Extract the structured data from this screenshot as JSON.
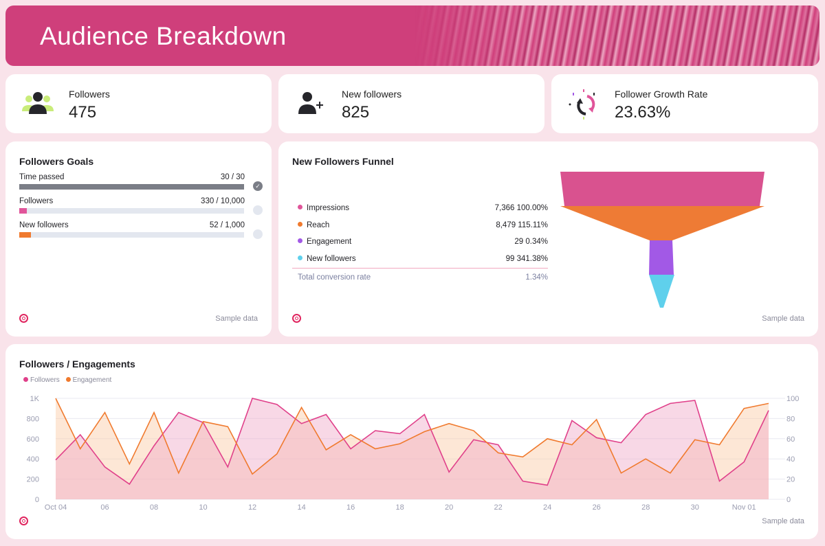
{
  "header": {
    "title": "Audience Breakdown"
  },
  "kpis": [
    {
      "label": "Followers",
      "value": "475",
      "icon": "users-group-icon"
    },
    {
      "label": "New followers",
      "value": "825",
      "icon": "user-plus-icon"
    },
    {
      "label": "Follower Growth Rate",
      "value": "23.63%",
      "icon": "growth-cycle-icon"
    }
  ],
  "goals": {
    "title": "Followers Goals",
    "items": [
      {
        "label": "Time passed",
        "value": "30 / 30",
        "progress": 1.0,
        "color": "#7b7e87",
        "complete": true
      },
      {
        "label": "Followers",
        "value": "330 / 10,000",
        "progress": 0.033,
        "color": "#e0559a",
        "complete": false
      },
      {
        "label": "New followers",
        "value": "52 / 1,000",
        "progress": 0.052,
        "color": "#f07a2e",
        "complete": false
      }
    ],
    "footer": "Sample data"
  },
  "funnel": {
    "title": "New Followers Funnel",
    "rows": [
      {
        "label": "Impressions",
        "value": "7,366 100.00%",
        "color": "#e0559a"
      },
      {
        "label": "Reach",
        "value": "8,479 115.11%",
        "color": "#f07a2e"
      },
      {
        "label": "Engagement",
        "value": "29 0.34%",
        "color": "#a259e6"
      },
      {
        "label": "New followers",
        "value": "99 341.38%",
        "color": "#5fd0ec"
      }
    ],
    "total_label": "Total conversion rate",
    "total_value": "1.34%",
    "footer": "Sample data"
  },
  "chart": {
    "title": "Followers / Engagements",
    "footer": "Sample data"
  },
  "chart_data": {
    "type": "area",
    "x": [
      "Oct 04",
      "Oct 05",
      "Oct 06",
      "Oct 07",
      "Oct 08",
      "Oct 09",
      "Oct 10",
      "Oct 11",
      "Oct 12",
      "Oct 13",
      "Oct 14",
      "Oct 15",
      "Oct 16",
      "Oct 17",
      "Oct 18",
      "Oct 19",
      "Oct 20",
      "Oct 21",
      "Oct 22",
      "Oct 23",
      "Oct 24",
      "Oct 25",
      "Oct 26",
      "Oct 27",
      "Oct 28",
      "Oct 29",
      "Oct 30",
      "Oct 31",
      "Nov 01",
      "Nov 02"
    ],
    "x_tick_labels": [
      "Oct 04",
      "06",
      "08",
      "10",
      "12",
      "14",
      "16",
      "18",
      "20",
      "22",
      "24",
      "26",
      "28",
      "30",
      "Nov 01"
    ],
    "y_left_ticks": [
      "0",
      "200",
      "400",
      "600",
      "800",
      "1K"
    ],
    "y_right_ticks": [
      "0",
      "20",
      "40",
      "60",
      "80",
      "100"
    ],
    "ylim_left": [
      0,
      1000
    ],
    "ylim_right": [
      0,
      100
    ],
    "grid": true,
    "legend": "top-left",
    "series": [
      {
        "name": "Followers",
        "axis": "left",
        "color": "#e0408a",
        "values": [
          390,
          640,
          320,
          150,
          530,
          860,
          760,
          320,
          1000,
          940,
          750,
          840,
          500,
          680,
          650,
          840,
          270,
          590,
          540,
          180,
          140,
          780,
          610,
          560,
          840,
          950,
          980,
          180,
          370,
          880
        ]
      },
      {
        "name": "Engagement",
        "axis": "right",
        "color": "#f07a2e",
        "values": [
          100,
          50,
          86,
          35,
          86,
          26,
          77,
          72,
          25,
          45,
          91,
          49,
          64,
          50,
          55,
          67,
          75,
          68,
          46,
          42,
          60,
          54,
          79,
          26,
          40,
          26,
          59,
          54,
          90,
          95
        ]
      }
    ]
  }
}
